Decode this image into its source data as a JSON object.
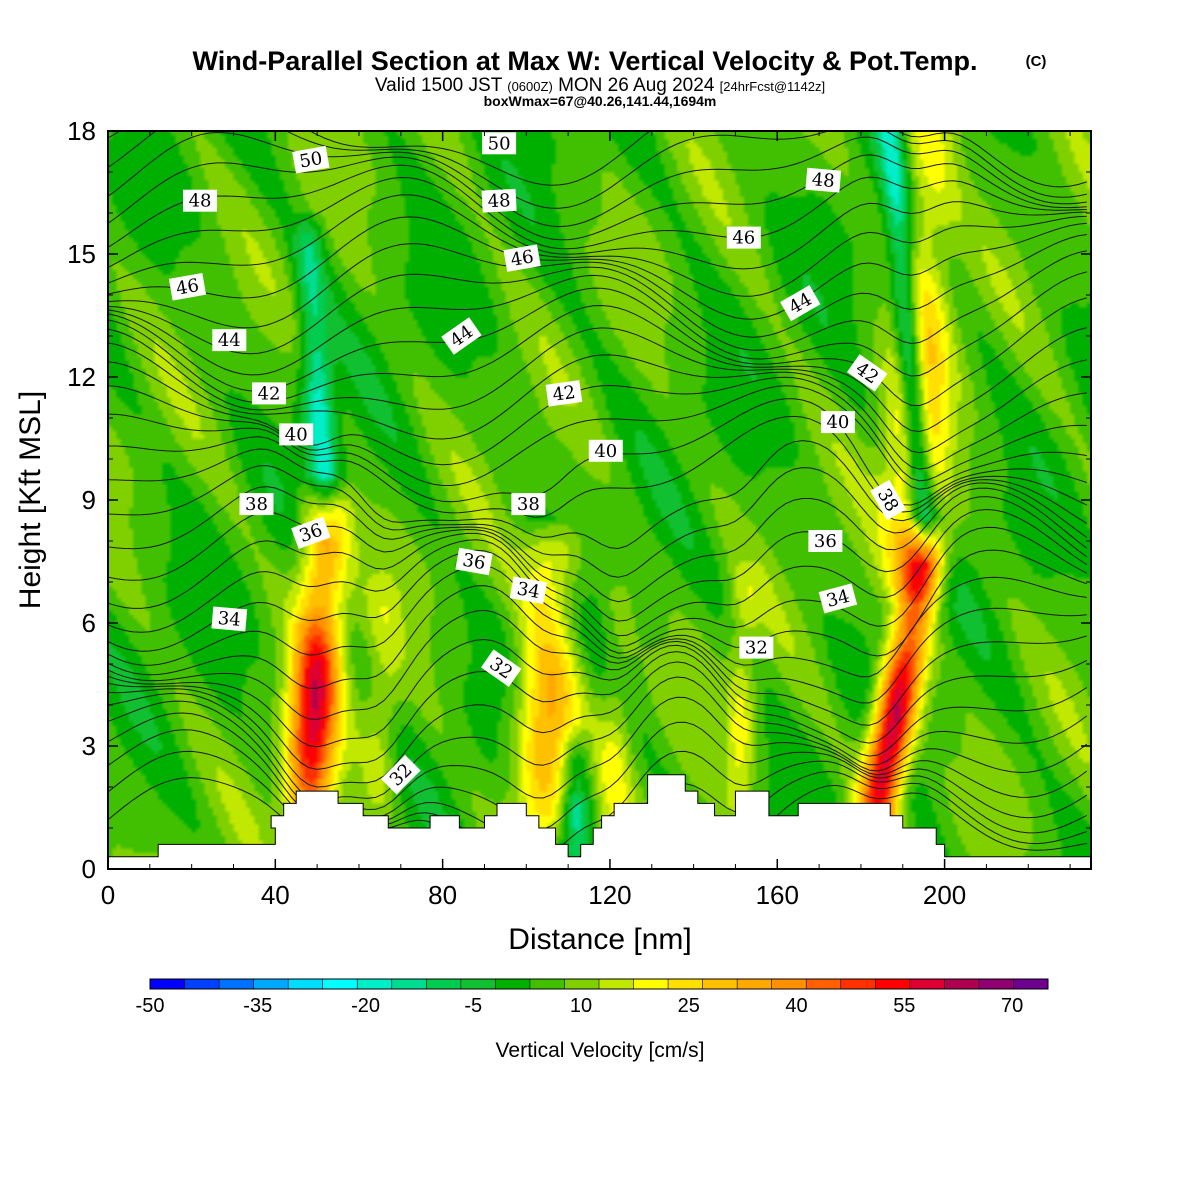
{
  "title": {
    "main": "Wind-Parallel Section at Max W: Vertical Velocity & Pot.Temp.",
    "copyright": "(C)",
    "valid_prefix": "Valid 1500 JST",
    "valid_z": "(0600Z)",
    "valid_date": "MON 26 Aug 2024",
    "forecast": "[24hrFcst@1142z]",
    "boxwmax": "boxWmax=67@40.26,141.44,1694m"
  },
  "colorbar": {
    "label": "Vertical Velocity [cm/s]",
    "tick_labels": [
      "-50",
      "-35",
      "-20",
      "-5",
      "10",
      "25",
      "40",
      "55",
      "70"
    ],
    "tick_values": [
      -50,
      -35,
      -20,
      -5,
      10,
      25,
      40,
      55,
      70
    ],
    "colors": [
      "#0000ff",
      "#0040ff",
      "#0070ff",
      "#00a8ff",
      "#00ddff",
      "#00ffff",
      "#00eec8",
      "#00dd90",
      "#00cc50",
      "#10c030",
      "#00b000",
      "#40c000",
      "#80d000",
      "#c0e800",
      "#ffff00",
      "#ffe000",
      "#ffc000",
      "#ffa800",
      "#ff9000",
      "#ff6000",
      "#ff3000",
      "#ff0000",
      "#dd0030",
      "#b00050",
      "#900070",
      "#700090"
    ]
  },
  "chart_data": {
    "type": "heatmap",
    "xlabel": "Distance [nm]",
    "ylabel": "Height [Kft MSL]",
    "xlim": [
      0,
      235
    ],
    "ylim": [
      0,
      18
    ],
    "x_ticks": [
      0,
      40,
      80,
      120,
      160,
      200
    ],
    "y_ticks": [
      0,
      3,
      6,
      9,
      12,
      15,
      18
    ],
    "background_w": 5,
    "updrafts": [
      {
        "x_base": 48,
        "x_top": 52,
        "z_bottom": 1.8,
        "z_top": 8.5,
        "w_max": 55,
        "width": 4
      },
      {
        "x_base": 104,
        "x_top": 106,
        "z_bottom": 1.6,
        "z_top": 7.5,
        "w_max": 35,
        "width": 5
      },
      {
        "x_base": 184,
        "x_top": 195,
        "z_bottom": 1.5,
        "z_top": 7.5,
        "w_max": 67,
        "width": 3.5
      },
      {
        "x_base": 192,
        "x_top": 196,
        "z_bottom": 7.5,
        "z_top": 18,
        "w_max": 30,
        "width": 5
      },
      {
        "x_base": 65,
        "x_top": 66,
        "z_bottom": 2,
        "z_top": 6.5,
        "w_max": 15,
        "width": 3
      },
      {
        "x_base": 151,
        "x_top": 152,
        "z_bottom": 2,
        "z_top": 6.5,
        "w_max": 18,
        "width": 2.5
      },
      {
        "x_base": 121,
        "x_top": 122,
        "z_bottom": 1.5,
        "z_top": 6.5,
        "w_max": 14,
        "width": 3
      }
    ],
    "downdrafts": [
      {
        "x_base": 52,
        "x_top": 48,
        "z_bottom": 9,
        "z_top": 15,
        "w_min": -20,
        "width": 2.5
      },
      {
        "x_base": 195,
        "x_top": 187,
        "z_bottom": 8.5,
        "z_top": 18,
        "w_min": -30,
        "width": 2.2
      },
      {
        "x_base": 112,
        "x_top": 112,
        "z_bottom": 0.8,
        "z_top": 2.5,
        "w_min": -20,
        "width": 2.5
      }
    ],
    "terrain": [
      [
        0,
        0.3
      ],
      [
        12,
        0.3
      ],
      [
        12,
        0.6
      ],
      [
        40,
        0.6
      ],
      [
        40,
        1.0
      ],
      [
        39,
        1.0
      ],
      [
        39,
        1.3
      ],
      [
        42,
        1.3
      ],
      [
        42,
        1.6
      ],
      [
        45,
        1.6
      ],
      [
        45,
        1.9
      ],
      [
        55,
        1.9
      ],
      [
        55,
        1.6
      ],
      [
        61,
        1.6
      ],
      [
        61,
        1.3
      ],
      [
        67,
        1.3
      ],
      [
        67,
        1.0
      ],
      [
        77,
        1.0
      ],
      [
        77,
        1.3
      ],
      [
        84,
        1.3
      ],
      [
        84,
        1.0
      ],
      [
        90,
        1.0
      ],
      [
        90,
        1.3
      ],
      [
        93,
        1.3
      ],
      [
        93,
        1.6
      ],
      [
        100,
        1.6
      ],
      [
        100,
        1.3
      ],
      [
        103,
        1.3
      ],
      [
        103,
        1.0
      ],
      [
        107,
        1.0
      ],
      [
        107,
        0.6
      ],
      [
        110,
        0.6
      ],
      [
        110,
        0.3
      ],
      [
        113,
        0.3
      ],
      [
        113,
        0.6
      ],
      [
        116,
        0.6
      ],
      [
        116,
        1.0
      ],
      [
        118,
        1.0
      ],
      [
        118,
        1.3
      ],
      [
        121,
        1.3
      ],
      [
        121,
        1.6
      ],
      [
        129,
        1.6
      ],
      [
        129,
        2.3
      ],
      [
        138,
        2.3
      ],
      [
        138,
        1.9
      ],
      [
        141,
        1.9
      ],
      [
        141,
        1.6
      ],
      [
        145,
        1.6
      ],
      [
        145,
        1.3
      ],
      [
        150,
        1.3
      ],
      [
        150,
        1.9
      ],
      [
        158,
        1.9
      ],
      [
        158,
        1.3
      ],
      [
        165,
        1.3
      ],
      [
        165,
        1.6
      ],
      [
        187,
        1.6
      ],
      [
        187,
        1.3
      ],
      [
        190,
        1.3
      ],
      [
        190,
        1.0
      ],
      [
        198,
        1.0
      ],
      [
        198,
        0.6
      ],
      [
        200,
        0.6
      ],
      [
        200,
        0.3
      ],
      [
        235,
        0.3
      ]
    ],
    "theta_contours": {
      "units": "K-ish potential temperature labels",
      "levels": [
        32,
        34,
        36,
        38,
        40,
        42,
        44,
        46,
        48,
        50
      ],
      "labels": [
        {
          "text": "50",
          "x": 48.5,
          "z": 17.3,
          "angle": -10
        },
        {
          "text": "50",
          "x": 93.5,
          "z": 17.7,
          "angle": 0
        },
        {
          "text": "48",
          "x": 22,
          "z": 16.3,
          "angle": 0
        },
        {
          "text": "48",
          "x": 93.5,
          "z": 16.3,
          "angle": -3
        },
        {
          "text": "48",
          "x": 171,
          "z": 16.8,
          "angle": 5
        },
        {
          "text": "46",
          "x": 19,
          "z": 14.2,
          "angle": -10
        },
        {
          "text": "46",
          "x": 99,
          "z": 14.9,
          "angle": -10
        },
        {
          "text": "46",
          "x": 152,
          "z": 15.4,
          "angle": 0
        },
        {
          "text": "44",
          "x": 29,
          "z": 12.9,
          "angle": 0
        },
        {
          "text": "44",
          "x": 84.5,
          "z": 13.0,
          "angle": -35
        },
        {
          "text": "44",
          "x": 165.5,
          "z": 13.8,
          "angle": -30
        },
        {
          "text": "42",
          "x": 38.5,
          "z": 11.6,
          "angle": 0
        },
        {
          "text": "42",
          "x": 109,
          "z": 11.6,
          "angle": -8
        },
        {
          "text": "42",
          "x": 181.5,
          "z": 12.1,
          "angle": 35
        },
        {
          "text": "40",
          "x": 45,
          "z": 10.6,
          "angle": 0
        },
        {
          "text": "40",
          "x": 119,
          "z": 10.2,
          "angle": 0
        },
        {
          "text": "40",
          "x": 174.5,
          "z": 10.9,
          "angle": 0
        },
        {
          "text": "38",
          "x": 35.5,
          "z": 8.9,
          "angle": 0
        },
        {
          "text": "38",
          "x": 100.5,
          "z": 8.9,
          "angle": 0
        },
        {
          "text": "38",
          "x": 186.5,
          "z": 9.0,
          "angle": 60
        },
        {
          "text": "36",
          "x": 48.5,
          "z": 8.2,
          "angle": -20
        },
        {
          "text": "36",
          "x": 87.5,
          "z": 7.5,
          "angle": 10
        },
        {
          "text": "36",
          "x": 171.5,
          "z": 8.0,
          "angle": 0
        },
        {
          "text": "34",
          "x": 29,
          "z": 6.1,
          "angle": 5
        },
        {
          "text": "34",
          "x": 100.5,
          "z": 6.8,
          "angle": 10
        },
        {
          "text": "34",
          "x": 174.5,
          "z": 6.6,
          "angle": -15
        },
        {
          "text": "32",
          "x": 94,
          "z": 4.9,
          "angle": 35
        },
        {
          "text": "32",
          "x": 155,
          "z": 5.4,
          "angle": 0
        },
        {
          "text": "32",
          "x": 70,
          "z": 2.3,
          "angle": -45
        }
      ]
    }
  }
}
